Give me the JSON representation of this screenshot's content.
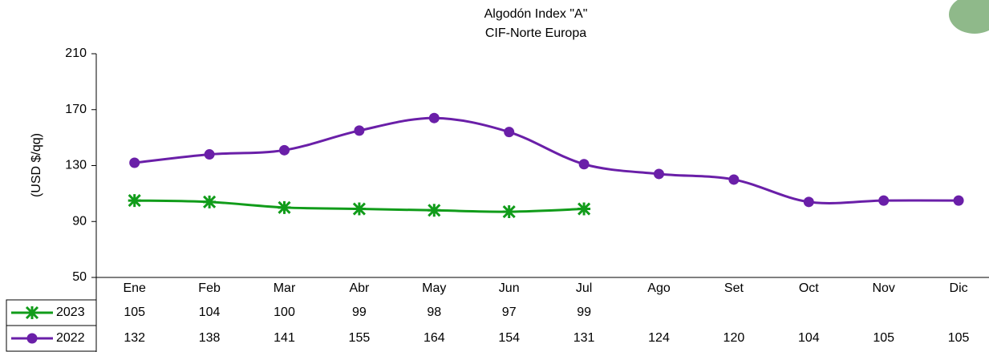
{
  "chart_data": {
    "type": "line",
    "title": "Algodón Index \"A\"",
    "subtitle": "CIF-Norte Europa",
    "y_label": "(USD $/qq)",
    "categories": [
      "Ene",
      "Feb",
      "Mar",
      "Abr",
      "May",
      "Jun",
      "Jul",
      "Ago",
      "Set",
      "Oct",
      "Nov",
      "Dic"
    ],
    "series": [
      {
        "name": "2023",
        "color": "#119c1a",
        "marker": "asterisk",
        "values": [
          105,
          104,
          100,
          99,
          98,
          97,
          99,
          null,
          null,
          null,
          null,
          null
        ]
      },
      {
        "name": "2022",
        "color": "#6a1fa8",
        "marker": "circle",
        "values": [
          132,
          138,
          141,
          155,
          164,
          154,
          131,
          124,
          120,
          104,
          105,
          105
        ]
      }
    ],
    "ylim": [
      50,
      210
    ],
    "yticks": [
      50,
      90,
      130,
      170,
      210
    ],
    "grid": false
  }
}
